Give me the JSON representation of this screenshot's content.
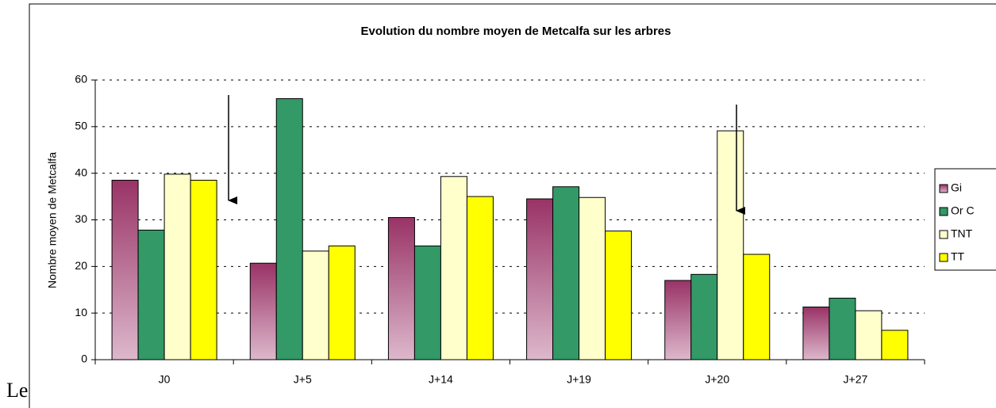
{
  "fragment_text": "Le",
  "chart_data": {
    "type": "bar",
    "title": "Evolution du nombre moyen de Metcalfa sur les arbres",
    "y_label": "Nombre moyen de Metcalfa",
    "categories": [
      "J0",
      "J+5",
      "J+14",
      "J+19",
      "J+20",
      "J+27"
    ],
    "series": [
      {
        "name": "Gi",
        "color": "#993366",
        "values": [
          38.5,
          20.7,
          30.5,
          34.5,
          17,
          11.3
        ]
      },
      {
        "name": "Or C",
        "color": "#339966",
        "values": [
          27.8,
          56,
          24.4,
          37.1,
          18.3,
          13.2
        ]
      },
      {
        "name": "TNT",
        "color": "#ffffcc",
        "values": [
          39.8,
          23.3,
          39.3,
          34.8,
          49.1,
          10.5
        ]
      },
      {
        "name": "TT",
        "color": "#ffff00",
        "values": [
          38.5,
          24.4,
          35,
          27.6,
          22.6,
          6.3
        ]
      }
    ],
    "ylim": [
      0,
      60
    ],
    "yticks": [
      0,
      10,
      20,
      30,
      40,
      50,
      60
    ],
    "grid": true,
    "legend": "right"
  }
}
